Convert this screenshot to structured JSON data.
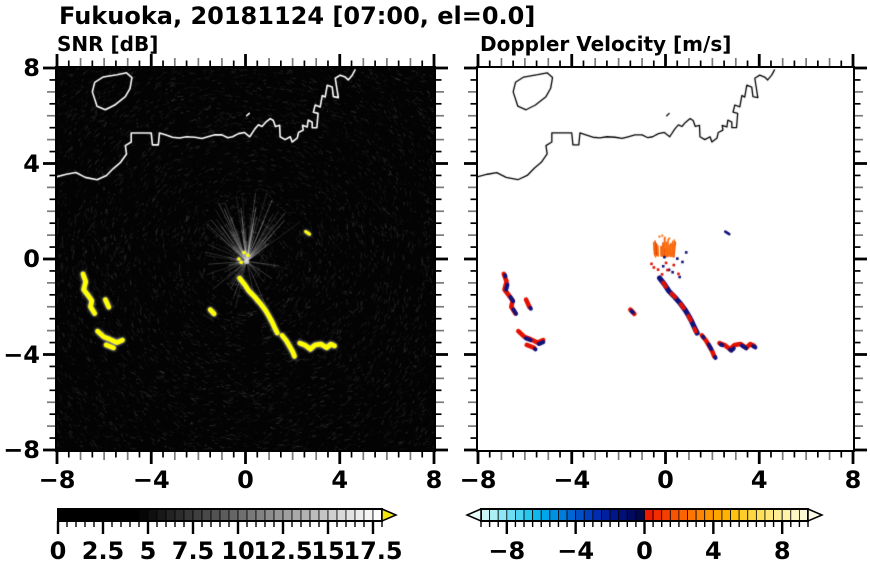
{
  "title": "Fukuoka, 20181124 [07:00, el=0.0]",
  "panels": {
    "snr": {
      "title": "SNR [dB]"
    },
    "velocity": {
      "title": "Doppler Velocity [m/s]"
    }
  },
  "chart_data": {
    "type": "heatmap",
    "subtype": "radar_ppi_pair",
    "site": "Fukuoka",
    "date": "20181124",
    "time": "07:00",
    "elevation": 0.0,
    "axis": {
      "xlim": [
        -8,
        8
      ],
      "ylim": [
        -8,
        8
      ],
      "major_ticks": [
        -8,
        -4,
        0,
        4,
        8
      ],
      "minor_tick_step": 0.5,
      "x_tick_labels": [
        "−8",
        "−4",
        "0",
        "4",
        "8"
      ],
      "x_tick_values": [
        -8,
        -4,
        0,
        4,
        8
      ],
      "y_tick_labels": [
        "8",
        "4",
        "0",
        "−4",
        "−8"
      ],
      "y_tick_values": [
        8,
        4,
        0,
        -4,
        -8
      ]
    },
    "panel_styles": {
      "snr": {
        "background": "#040404",
        "coast_color": "#ffffff",
        "echo_color": "#ffff00",
        "noise_color": "gray-speckle"
      },
      "velocity": {
        "background": "#ffffff",
        "coast_color": "#000000",
        "echo_color_away": "#e41000",
        "echo_color_toward": "#12127c",
        "near_radar_color": "#fb6c10"
      }
    },
    "radar_center": [
      0.05,
      -0.1
    ],
    "coastline": [
      [
        [
          -8,
          3.45
        ],
        [
          -7.6,
          3.55
        ],
        [
          -7.2,
          3.62
        ],
        [
          -6.8,
          3.42
        ],
        [
          -6.3,
          3.32
        ],
        [
          -5.9,
          3.5
        ],
        [
          -5.6,
          3.8
        ],
        [
          -5.3,
          4.05
        ],
        [
          -5.05,
          4.4
        ],
        [
          -5.1,
          4.75
        ],
        [
          -4.85,
          4.9
        ],
        [
          -4.85,
          5.28
        ],
        [
          -4.4,
          5.28
        ],
        [
          -4.0,
          5.28
        ],
        [
          -3.95,
          4.78
        ],
        [
          -3.7,
          4.78
        ],
        [
          -3.65,
          5.28
        ],
        [
          -3.4,
          5.2
        ],
        [
          -3.1,
          5.1
        ],
        [
          -2.8,
          5.07
        ],
        [
          -2.5,
          5.12
        ],
        [
          -2.15,
          5.1
        ],
        [
          -1.85,
          5.05
        ],
        [
          -1.6,
          5.12
        ],
        [
          -1.3,
          5.2
        ],
        [
          -1.0,
          5.2
        ],
        [
          -0.75,
          5.08
        ],
        [
          -0.55,
          5.12
        ],
        [
          -0.3,
          5.25
        ],
        [
          -0.05,
          5.3
        ],
        [
          0.18,
          5.12
        ],
        [
          0.4,
          5.45
        ],
        [
          0.55,
          5.62
        ],
        [
          0.7,
          5.55
        ],
        [
          0.85,
          5.72
        ],
        [
          1.05,
          5.88
        ],
        [
          1.18,
          5.8
        ],
        [
          1.27,
          5.55
        ],
        [
          1.45,
          5.6
        ],
        [
          1.47,
          5.12
        ],
        [
          1.68,
          5.0
        ],
        [
          1.9,
          5.12
        ],
        [
          1.98,
          4.9
        ],
        [
          2.2,
          5.07
        ],
        [
          2.25,
          5.3
        ],
        [
          2.45,
          5.4
        ],
        [
          2.42,
          5.6
        ],
        [
          2.62,
          5.53
        ],
        [
          2.66,
          5.82
        ],
        [
          2.83,
          5.73
        ],
        [
          2.83,
          5.5
        ],
        [
          3.03,
          5.5
        ],
        [
          3.08,
          6.1
        ],
        [
          2.88,
          6.15
        ],
        [
          2.96,
          6.45
        ],
        [
          3.17,
          6.37
        ],
        [
          3.26,
          6.85
        ],
        [
          3.38,
          6.78
        ],
        [
          3.47,
          7.28
        ],
        [
          3.68,
          7.2
        ],
        [
          3.73,
          6.8
        ],
        [
          3.94,
          6.76
        ],
        [
          3.81,
          7.57
        ],
        [
          4.02,
          7.7
        ],
        [
          4.23,
          7.62
        ],
        [
          4.36,
          7.5
        ],
        [
          4.53,
          7.7
        ],
        [
          4.65,
          7.92
        ]
      ],
      [
        [
          -6.4,
          7.4
        ],
        [
          -6.5,
          7.0
        ],
        [
          -6.3,
          6.4
        ],
        [
          -5.95,
          6.25
        ],
        [
          -5.55,
          6.45
        ],
        [
          -5.1,
          6.8
        ],
        [
          -4.9,
          7.15
        ],
        [
          -4.82,
          7.6
        ],
        [
          -5.05,
          7.8
        ],
        [
          -5.45,
          7.72
        ],
        [
          -6.05,
          7.62
        ],
        [
          -6.4,
          7.4
        ]
      ],
      [
        [
          0.05,
          6.0
        ],
        [
          0.16,
          6.1
        ]
      ]
    ],
    "echoes": [
      {
        "name": "west-arc",
        "mix": "red",
        "pts": [
          [
            -6.9,
            -0.62
          ],
          [
            -6.78,
            -0.95
          ],
          [
            -6.87,
            -1.28
          ],
          [
            -6.66,
            -1.55
          ],
          [
            -6.52,
            -1.75
          ],
          [
            -6.58,
            -2.0
          ],
          [
            -6.4,
            -2.28
          ]
        ]
      },
      {
        "name": "west-dash",
        "mix": "red",
        "pts": [
          [
            -5.95,
            -1.7
          ],
          [
            -5.8,
            -2.02
          ]
        ]
      },
      {
        "name": "southwest-cluster",
        "mix": "red",
        "pts": [
          [
            -6.28,
            -3.02
          ],
          [
            -6.02,
            -3.26
          ],
          [
            -5.76,
            -3.36
          ],
          [
            -5.46,
            -3.5
          ],
          [
            -5.22,
            -3.4
          ]
        ]
      },
      {
        "name": "southwest-cluster-2",
        "mix": "red",
        "pts": [
          [
            -5.92,
            -3.6
          ],
          [
            -5.6,
            -3.72
          ]
        ]
      },
      {
        "name": "center-dash",
        "mix": "red",
        "pts": [
          [
            -1.5,
            -2.12
          ],
          [
            -1.33,
            -2.3
          ]
        ]
      },
      {
        "name": "main-diagonal",
        "mix": "navy",
        "pts": [
          [
            -0.25,
            -0.8
          ],
          [
            -0.05,
            -1.05
          ],
          [
            0.15,
            -1.35
          ],
          [
            0.4,
            -1.6
          ],
          [
            0.62,
            -1.85
          ],
          [
            0.85,
            -2.15
          ],
          [
            1.0,
            -2.4
          ],
          [
            1.12,
            -2.62
          ],
          [
            1.24,
            -2.88
          ],
          [
            1.35,
            -3.1
          ]
        ]
      },
      {
        "name": "south-drop",
        "mix": "red",
        "pts": [
          [
            1.55,
            -3.2
          ],
          [
            1.73,
            -3.42
          ],
          [
            1.86,
            -3.64
          ],
          [
            2.0,
            -3.88
          ],
          [
            2.08,
            -4.08
          ]
        ]
      },
      {
        "name": "southeast-hook",
        "mix": "red",
        "pts": [
          [
            2.3,
            -3.52
          ],
          [
            2.55,
            -3.62
          ],
          [
            2.75,
            -3.78
          ],
          [
            2.95,
            -3.6
          ],
          [
            3.2,
            -3.56
          ],
          [
            3.45,
            -3.72
          ],
          [
            3.62,
            -3.56
          ],
          [
            3.78,
            -3.64
          ]
        ]
      },
      {
        "name": "northeast-dash",
        "mix": "thin",
        "pts": [
          [
            2.55,
            1.15
          ],
          [
            2.72,
            1.04
          ]
        ]
      }
    ],
    "snr_center_dots": [
      [
        -0.28,
        0.0
      ],
      [
        -0.06,
        0.27
      ],
      [
        0.1,
        0.16
      ],
      [
        -0.18,
        -0.14
      ]
    ],
    "orange_fan": {
      "x_range": [
        -0.55,
        0.35
      ],
      "y_range": [
        0.08,
        0.95
      ]
    },
    "velocity_specks": {
      "navy": [
        [
          0.5,
          0.02
        ],
        [
          0.72,
          -0.12
        ],
        [
          0.3,
          -0.55
        ],
        [
          0.88,
          0.28
        ],
        [
          -0.1,
          -0.3
        ],
        [
          0.15,
          -0.45
        ],
        [
          0.6,
          -0.75
        ],
        [
          -0.05,
          0.08
        ]
      ],
      "red": [
        [
          -0.5,
          -0.35
        ],
        [
          -0.32,
          -0.44
        ],
        [
          0.08,
          -0.46
        ],
        [
          0.55,
          -0.62
        ],
        [
          -0.15,
          -0.64
        ],
        [
          0.02,
          -0.16
        ],
        [
          0.35,
          -0.25
        ],
        [
          -0.6,
          -0.2
        ]
      ]
    },
    "colorbars": {
      "snr": {
        "min": 0,
        "max": 18,
        "cell_step": 0.5,
        "tick_values": [
          0,
          2.5,
          5,
          7.5,
          10,
          12.5,
          15,
          17.5
        ],
        "tick_labels": [
          "0",
          "2.5",
          "5",
          "7.5",
          "10",
          "12.5",
          "15",
          "17.5"
        ],
        "black_until": 4.2,
        "over_arrow_color": "#f2e60a"
      },
      "velocity": {
        "min": -9.5,
        "max": 9.5,
        "cell_step": 0.5,
        "tick_values": [
          -8,
          -4,
          0,
          4,
          8
        ],
        "tick_labels": [
          "−8",
          "−4",
          "0",
          "4",
          "8"
        ],
        "neg_stops": [
          "#d8faf6",
          "#aef0f4",
          "#80e4f4",
          "#50d4f2",
          "#1cc2ee",
          "#00aaec",
          "#008ce0",
          "#006cd6",
          "#004cc8",
          "#0032b6",
          "#001e9c",
          "#001280",
          "#000a60",
          "#000640"
        ],
        "pos_stops": [
          "#ea1000",
          "#f22e00",
          "#f84c00",
          "#fc6800",
          "#ff8200",
          "#ff9c00",
          "#ffb400",
          "#ffca1c",
          "#ffda44",
          "#ffe670",
          "#fff09c",
          "#fff7c2",
          "#fbfbdc"
        ],
        "under_arrow_color": "#e6fdfa",
        "over_arrow_color": "#fbfbe6"
      }
    }
  }
}
